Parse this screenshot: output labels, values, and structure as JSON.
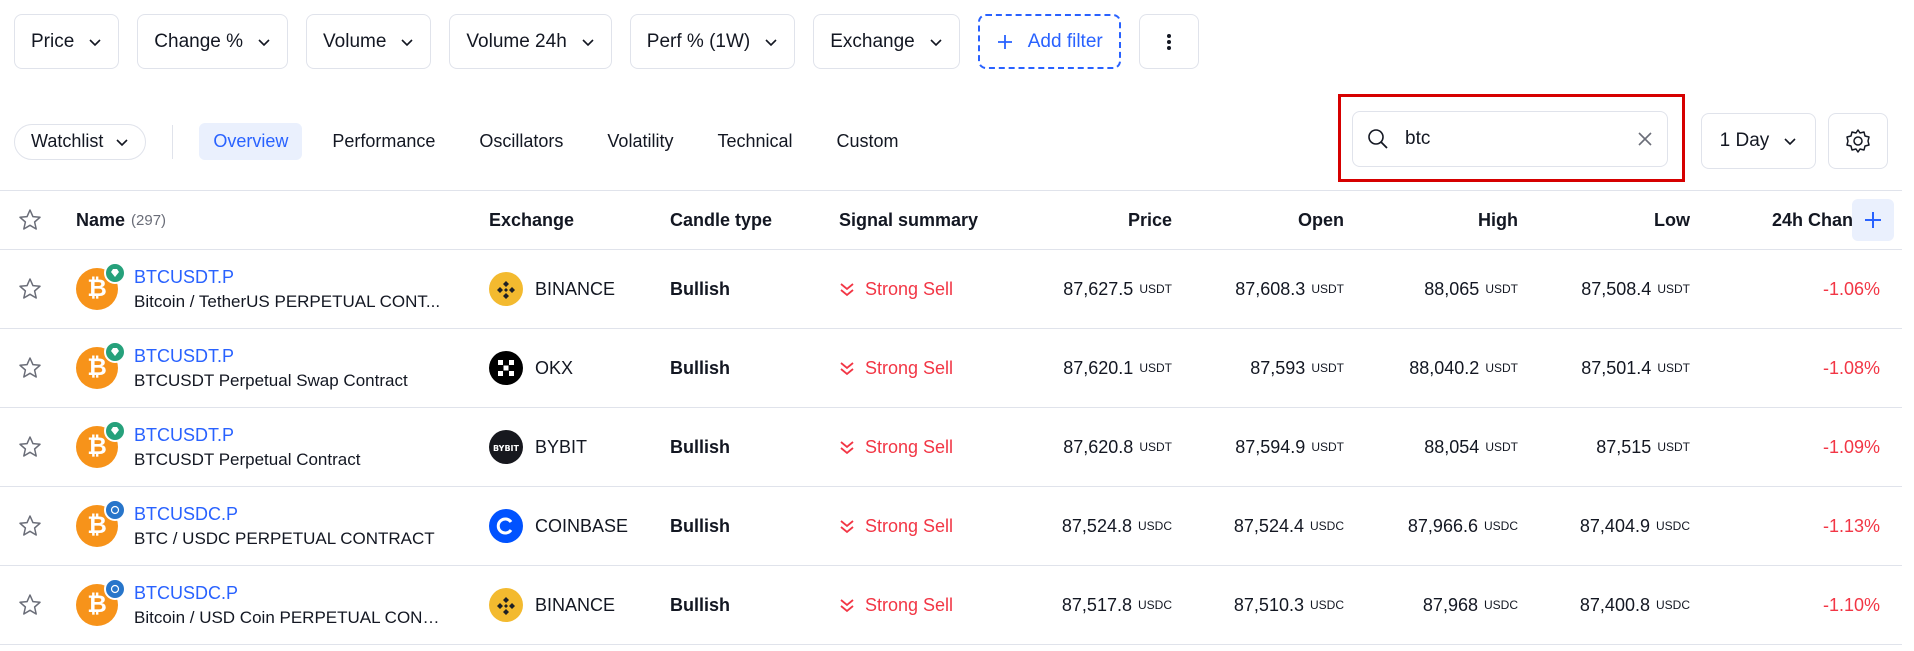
{
  "filters": [
    "Price",
    "Change %",
    "Volume",
    "Volume 24h",
    "Perf % (1W)",
    "Exchange"
  ],
  "add_filter_label": "Add filter",
  "watchlist_label": "Watchlist",
  "tabs": [
    "Overview",
    "Performance",
    "Oscillators",
    "Volatility",
    "Technical",
    "Custom"
  ],
  "active_tab": "Overview",
  "search": {
    "value": "btc"
  },
  "period_label": "1 Day",
  "columns": {
    "name": "Name",
    "name_count": "(297)",
    "exchange": "Exchange",
    "candle": "Candle type",
    "signal": "Signal summary",
    "price": "Price",
    "open": "Open",
    "high": "High",
    "low": "Low",
    "change": "24h Chan"
  },
  "rows": [
    {
      "symbol": "BTCUSDT.P",
      "desc": "Bitcoin / TetherUS PERPETUAL CONT...",
      "quote": "usdt",
      "exchange": "BINANCE",
      "candle": "Bullish",
      "signal": "Strong Sell",
      "price": "87,627.5",
      "open": "87,608.3",
      "high": "88,065",
      "low": "87,508.4",
      "unit": "USDT",
      "change": "-1.06%"
    },
    {
      "symbol": "BTCUSDT.P",
      "desc": "BTCUSDT Perpetual Swap Contract",
      "quote": "usdt",
      "exchange": "OKX",
      "candle": "Bullish",
      "signal": "Strong Sell",
      "price": "87,620.1",
      "open": "87,593",
      "high": "88,040.2",
      "low": "87,501.4",
      "unit": "USDT",
      "change": "-1.08%"
    },
    {
      "symbol": "BTCUSDT.P",
      "desc": "BTCUSDT Perpetual Contract",
      "quote": "usdt",
      "exchange": "BYBIT",
      "candle": "Bullish",
      "signal": "Strong Sell",
      "price": "87,620.8",
      "open": "87,594.9",
      "high": "88,054",
      "low": "87,515",
      "unit": "USDT",
      "change": "-1.09%"
    },
    {
      "symbol": "BTCUSDC.P",
      "desc": "BTC / USDC PERPETUAL CONTRACT",
      "quote": "usdc",
      "exchange": "COINBASE",
      "candle": "Bullish",
      "signal": "Strong Sell",
      "price": "87,524.8",
      "open": "87,524.4",
      "high": "87,966.6",
      "low": "87,404.9",
      "unit": "USDC",
      "change": "-1.13%"
    },
    {
      "symbol": "BTCUSDC.P",
      "desc": "Bitcoin / USD Coin PERPETUAL CONT...",
      "quote": "usdc",
      "exchange": "BINANCE",
      "candle": "Bullish",
      "signal": "Strong Sell",
      "price": "87,517.8",
      "open": "87,510.3",
      "high": "87,968",
      "low": "87,400.8",
      "unit": "USDC",
      "change": "-1.10%"
    }
  ],
  "colors": {
    "accent": "#2962ff",
    "negative": "#f23645",
    "highlight": "#d60000",
    "btc": "#f7931a"
  }
}
